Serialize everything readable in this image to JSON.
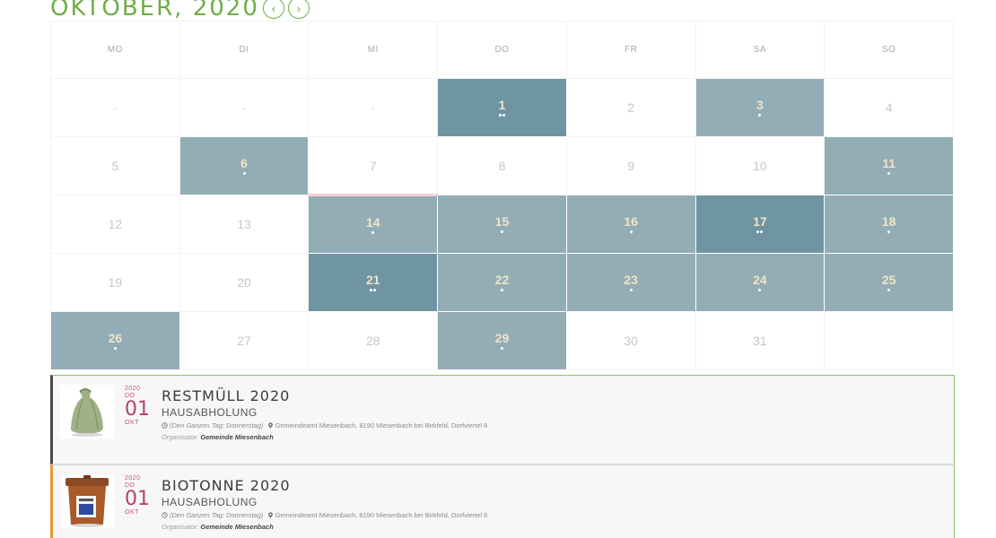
{
  "header": {
    "month_title": "OKTOBER, 2020",
    "prev_label": "‹",
    "next_label": "›",
    "accent": "#6fae46"
  },
  "weekdays": [
    "MO",
    "DI",
    "MI",
    "DO",
    "FR",
    "SA",
    "SO"
  ],
  "colors": {
    "event_light": "#93adb6",
    "event_dark": "#6f95a2",
    "today_marker": "#f7cfd2",
    "date_accent": "#b93f6e"
  },
  "weeks": [
    [
      {
        "label": "-"
      },
      {
        "label": "-"
      },
      {
        "label": "-"
      },
      {
        "label": "1",
        "events": 2
      },
      {
        "label": "2"
      },
      {
        "label": "3",
        "events": 1
      },
      {
        "label": "4"
      }
    ],
    [
      {
        "label": "5"
      },
      {
        "label": "6",
        "events": 1
      },
      {
        "label": "7"
      },
      {
        "label": "8"
      },
      {
        "label": "9"
      },
      {
        "label": "10"
      },
      {
        "label": "11",
        "events": 1
      }
    ],
    [
      {
        "label": "12"
      },
      {
        "label": "13"
      },
      {
        "label": "14",
        "events": 1,
        "today": true
      },
      {
        "label": "15",
        "events": 1
      },
      {
        "label": "16",
        "events": 1
      },
      {
        "label": "17",
        "events": 2
      },
      {
        "label": "18",
        "events": 1
      }
    ],
    [
      {
        "label": "19"
      },
      {
        "label": "20"
      },
      {
        "label": "21",
        "events": 2
      },
      {
        "label": "22",
        "events": 1
      },
      {
        "label": "23",
        "events": 1
      },
      {
        "label": "24",
        "events": 1
      },
      {
        "label": "25",
        "events": 1
      }
    ],
    [
      {
        "label": "26",
        "events": 1
      },
      {
        "label": "27"
      },
      {
        "label": "28"
      },
      {
        "label": "29",
        "events": 1
      },
      {
        "label": "30"
      },
      {
        "label": "31"
      },
      {
        "label": ""
      }
    ]
  ],
  "events": [
    {
      "year": "2020",
      "weekday": "DO",
      "day": "01",
      "month": "OKT",
      "title": "RESTMÜLL 2020",
      "subtitle": "HAUSABHOLUNG",
      "time": "(Den Ganzen Tag: Donnerstag)",
      "location": "Gemeindeamt Miesenbach, 8190 Miesenbach bei Birkfeld, Dorfviertel 6",
      "organizer_label": "Organisator:",
      "organizer": "Gemeinde Miesenbach",
      "icon": "trash-bag-icon"
    },
    {
      "year": "2020",
      "weekday": "DO",
      "day": "01",
      "month": "OKT",
      "title": "BIOTONNE 2020",
      "subtitle": "HAUSABHOLUNG",
      "time": "(Den Ganzen Tag: Donnerstag)",
      "location": "Gemeindeamt Miesenbach, 8190 Miesenbach bei Birkfeld, Dorfviertel 6",
      "organizer_label": "Organisator:",
      "organizer": "Gemeinde Miesenbach",
      "icon": "bio-bin-icon"
    }
  ]
}
